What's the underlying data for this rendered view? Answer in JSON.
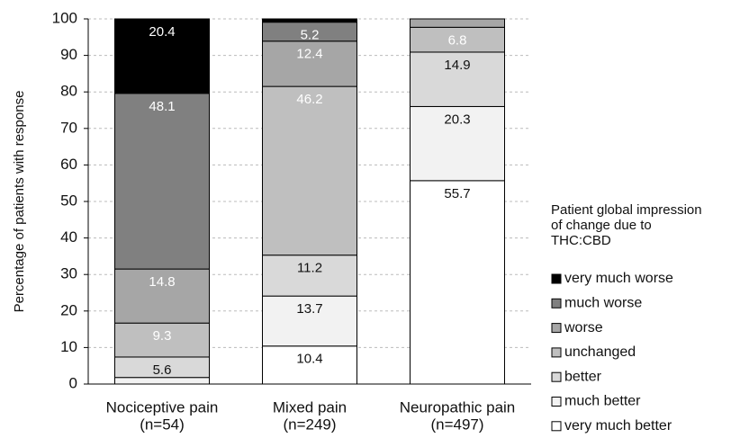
{
  "chart_data": {
    "type": "stacked_bar",
    "y_label": "Percentage of patients with response",
    "categories": [
      [
        "Nociceptive pain",
        "(n=54)"
      ],
      [
        "Mixed pain",
        "(n=249)"
      ],
      [
        "Neuropathic pain",
        "(n=497)"
      ]
    ],
    "series": [
      {
        "name": "very much better",
        "color": "#ffffff",
        "values": [
          0,
          10.4,
          55.7
        ]
      },
      {
        "name": "much better",
        "color": "#f2f2f2",
        "values": [
          1.8,
          13.7,
          20.3
        ]
      },
      {
        "name": "better",
        "color": "#d9d9d9",
        "values": [
          5.6,
          11.2,
          14.9
        ]
      },
      {
        "name": "unchanged",
        "color": "#bfbfbf",
        "values": [
          9.3,
          46.2,
          6.8
        ]
      },
      {
        "name": "worse",
        "color": "#a6a6a6",
        "values": [
          14.8,
          12.4,
          2.3
        ]
      },
      {
        "name": "much worse",
        "color": "#808080",
        "values": [
          48.1,
          5.2,
          0
        ]
      },
      {
        "name": "very much worse",
        "color": "#000000",
        "values": [
          20.4,
          0.9,
          0
        ]
      }
    ],
    "legend_title": [
      "Patient global impression",
      "of change due to",
      "THC:CBD"
    ],
    "ylim": [
      0,
      100
    ],
    "yticks": [
      0,
      10,
      20,
      30,
      40,
      50,
      60,
      70,
      80,
      90,
      100
    ],
    "grid": true
  }
}
